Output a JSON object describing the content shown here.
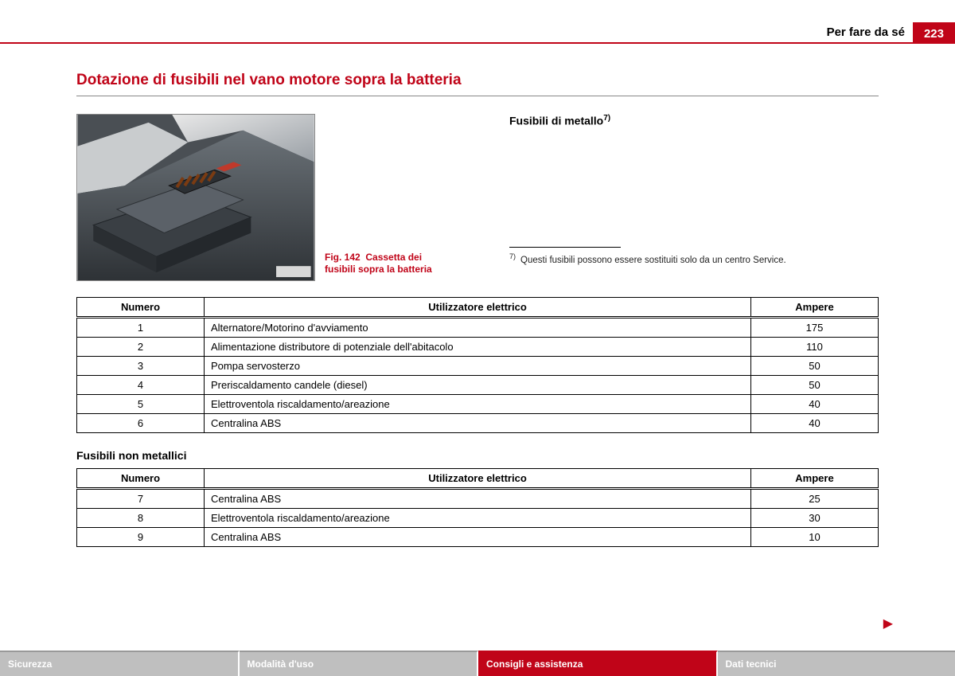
{
  "header": {
    "section": "Per fare da sé",
    "page": "223"
  },
  "heading": "Dotazione di fusibili nel vano motore sopra la batteria",
  "figure": {
    "label": "Fig. 142",
    "caption": "Cassetta dei fusibili sopra la batteria"
  },
  "subhead": "Fusibili di metallo",
  "subhead_sup": "7)",
  "footnote_mark": "7)",
  "footnote_text": "Questi fusibili possono essere sostituiti solo da un centro Service.",
  "table1": {
    "columns": [
      "Numero",
      "Utilizzatore elettrico",
      "Ampere"
    ],
    "rows": [
      [
        "1",
        "Alternatore/Motorino d'avviamento",
        "175"
      ],
      [
        "2",
        "Alimentazione distributore di potenziale dell'abitacolo",
        "110"
      ],
      [
        "3",
        "Pompa servosterzo",
        "50"
      ],
      [
        "4",
        "Preriscaldamento candele (diesel)",
        "50"
      ],
      [
        "5",
        "Elettroventola riscaldamento/areazione",
        "40"
      ],
      [
        "6",
        " Centralina ABS",
        "40"
      ]
    ]
  },
  "between": "Fusibili non metallici",
  "table2": {
    "columns": [
      "Numero",
      "Utilizzatore elettrico",
      "Ampere"
    ],
    "rows": [
      [
        "7",
        "Centralina ABS",
        "25"
      ],
      [
        "8",
        "Elettroventola riscaldamento/areazione",
        "30"
      ],
      [
        "9",
        "Centralina ABS",
        "10"
      ]
    ]
  },
  "footer": {
    "tabs": [
      "Sicurezza",
      "Modalità d'uso",
      "Consigli e assistenza",
      "Dati tecnici"
    ],
    "active_index": 2
  },
  "continue_glyph": "▶"
}
